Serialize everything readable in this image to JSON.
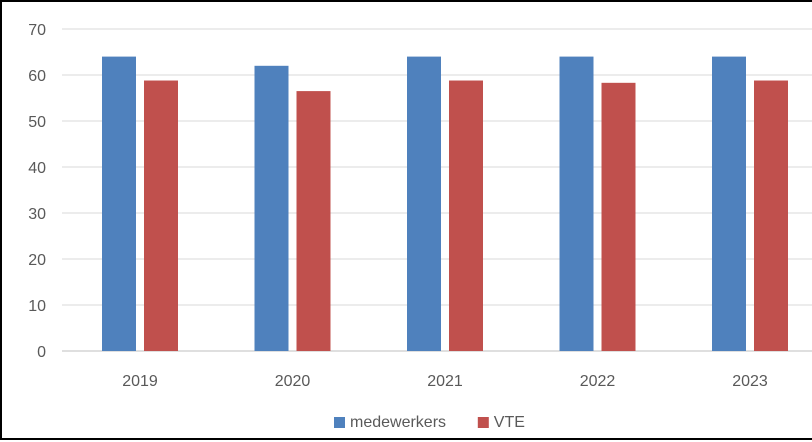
{
  "chart_data": {
    "type": "bar",
    "categories": [
      "2019",
      "2020",
      "2021",
      "2022",
      "2023"
    ],
    "series": [
      {
        "name": "medewerkers",
        "color": "#4F81BD",
        "values": [
          64,
          62,
          64,
          64,
          64
        ]
      },
      {
        "name": "VTE",
        "color": "#C0504D",
        "values": [
          58.8,
          56.5,
          58.8,
          58.3,
          58.8
        ]
      }
    ],
    "y_ticks": [
      "0",
      "10",
      "20",
      "30",
      "40",
      "50",
      "60",
      "70"
    ],
    "ylim": [
      0,
      70
    ],
    "grid": true,
    "legend_position": "bottom",
    "title": "",
    "xlabel": "",
    "ylabel": ""
  }
}
